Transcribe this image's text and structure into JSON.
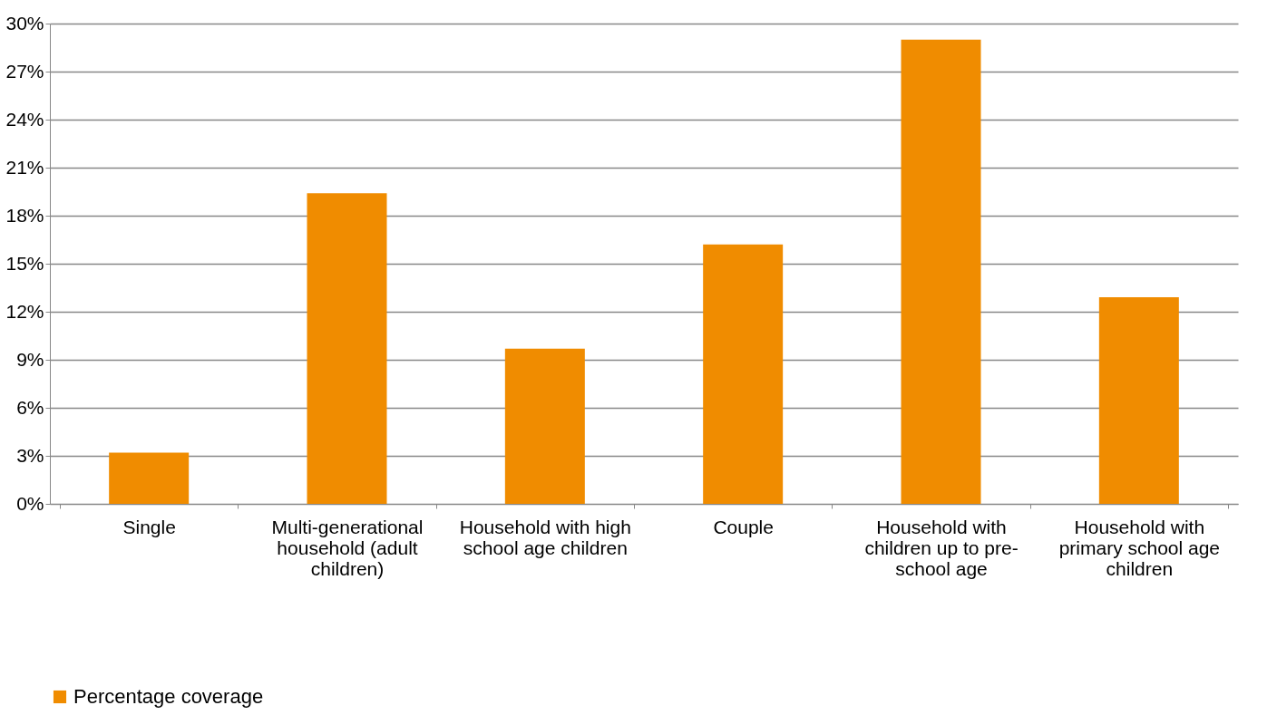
{
  "chart_data": {
    "type": "bar",
    "categories": [
      "Single",
      "Multi-generational household (adult children)",
      "Household with high school age children",
      "Couple",
      "Household with children up to pre-school age",
      "Household with primary school age children"
    ],
    "series": [
      {
        "name": "Percentage coverage",
        "color": "#f08c00",
        "values": [
          3.2,
          19.4,
          9.7,
          16.2,
          29.0,
          12.9
        ]
      }
    ],
    "ylim": [
      0,
      30
    ],
    "yticks": [
      {
        "value": 0,
        "label": "0%"
      },
      {
        "value": 3,
        "label": "3%"
      },
      {
        "value": 6,
        "label": "6%"
      },
      {
        "value": 9,
        "label": "9%"
      },
      {
        "value": 12,
        "label": "12%"
      },
      {
        "value": 15,
        "label": "15%"
      },
      {
        "value": 18,
        "label": "18%"
      },
      {
        "value": 21,
        "label": "21%"
      },
      {
        "value": 24,
        "label": "24%"
      },
      {
        "value": 27,
        "label": "27%"
      },
      {
        "value": 30,
        "label": "30%"
      }
    ],
    "grid": "y",
    "legend": "bottom"
  }
}
